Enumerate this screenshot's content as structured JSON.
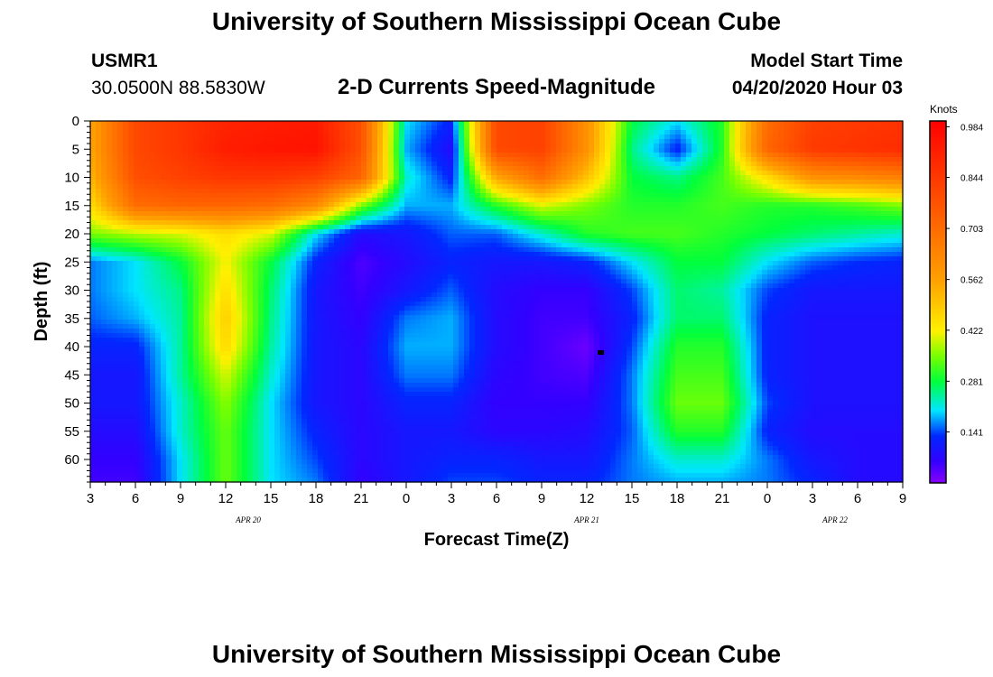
{
  "header": {
    "title": "University of Southern Mississippi Ocean Cube",
    "station": "USMR1",
    "coordinates": "30.0500N 88.5830W",
    "subtitle": "2-D Currents Speed-Magnitude",
    "model_label": "Model Start Time",
    "model_time": "04/20/2020 Hour 03"
  },
  "footer": {
    "title": "University of Southern Mississippi Ocean Cube"
  },
  "chart_data": {
    "type": "heatmap",
    "title": "2-D Currents Speed-Magnitude",
    "xlabel": "Forecast Time(Z)",
    "ylabel": "Depth (ft)",
    "x_unit": "hours since 04/20/2020 03Z",
    "xlim": [
      0,
      54
    ],
    "ylim": [
      0,
      64
    ],
    "y_inverted": true,
    "x_ticks": [
      {
        "hour": 0,
        "label": "3"
      },
      {
        "hour": 3,
        "label": "6"
      },
      {
        "hour": 6,
        "label": "9"
      },
      {
        "hour": 9,
        "label": "12"
      },
      {
        "hour": 12,
        "label": "15"
      },
      {
        "hour": 15,
        "label": "18"
      },
      {
        "hour": 18,
        "label": "21"
      },
      {
        "hour": 21,
        "label": "0"
      },
      {
        "hour": 24,
        "label": "3"
      },
      {
        "hour": 27,
        "label": "6"
      },
      {
        "hour": 30,
        "label": "9"
      },
      {
        "hour": 33,
        "label": "12"
      },
      {
        "hour": 36,
        "label": "15"
      },
      {
        "hour": 39,
        "label": "18"
      },
      {
        "hour": 42,
        "label": "21"
      },
      {
        "hour": 45,
        "label": "0"
      },
      {
        "hour": 48,
        "label": "3"
      },
      {
        "hour": 51,
        "label": "6"
      },
      {
        "hour": 54,
        "label": "9"
      }
    ],
    "date_labels": [
      {
        "hour": 10.5,
        "label": "APR 20"
      },
      {
        "hour": 33,
        "label": "APR 21"
      },
      {
        "hour": 49.5,
        "label": "APR 22"
      }
    ],
    "y_ticks": [
      0,
      5,
      10,
      15,
      20,
      25,
      30,
      35,
      40,
      45,
      50,
      55,
      60
    ],
    "colorbar": {
      "units": "Knots",
      "min": 0,
      "max": 1.0,
      "tick_values": [
        0.141,
        0.281,
        0.422,
        0.562,
        0.703,
        0.844,
        0.984
      ],
      "tick_labels": [
        "0.141",
        "0.281",
        "0.422",
        "0.562",
        "0.703",
        "0.844",
        "0.984"
      ]
    },
    "grid_x_hours": [
      0,
      3,
      6,
      9,
      12,
      15,
      18,
      21,
      24,
      27,
      30,
      33,
      36,
      39,
      42,
      45,
      48,
      51,
      54
    ],
    "grid_y_depths": [
      0,
      5,
      10,
      15,
      20,
      25,
      30,
      35,
      40,
      45,
      50,
      55,
      60,
      64
    ],
    "values": [
      [
        0.55,
        0.8,
        0.85,
        0.9,
        0.92,
        0.93,
        0.78,
        0.2,
        0.12,
        0.8,
        0.82,
        0.6,
        0.28,
        0.2,
        0.3,
        0.7,
        0.82,
        0.84,
        0.86
      ],
      [
        0.55,
        0.8,
        0.85,
        0.92,
        0.94,
        0.95,
        0.78,
        0.18,
        0.08,
        0.8,
        0.82,
        0.6,
        0.25,
        0.12,
        0.3,
        0.72,
        0.84,
        0.86,
        0.88
      ],
      [
        0.52,
        0.78,
        0.82,
        0.85,
        0.85,
        0.82,
        0.72,
        0.22,
        0.12,
        0.55,
        0.7,
        0.5,
        0.28,
        0.25,
        0.32,
        0.45,
        0.6,
        0.62,
        0.65
      ],
      [
        0.45,
        0.7,
        0.72,
        0.72,
        0.7,
        0.62,
        0.35,
        0.18,
        0.18,
        0.3,
        0.4,
        0.35,
        0.3,
        0.3,
        0.32,
        0.3,
        0.3,
        0.32,
        0.35
      ],
      [
        0.35,
        0.38,
        0.4,
        0.45,
        0.4,
        0.2,
        0.08,
        0.1,
        0.15,
        0.15,
        0.22,
        0.3,
        0.32,
        0.32,
        0.3,
        0.28,
        0.26,
        0.24,
        0.22
      ],
      [
        0.16,
        0.2,
        0.28,
        0.42,
        0.28,
        0.12,
        0.04,
        0.08,
        0.12,
        0.1,
        0.1,
        0.12,
        0.2,
        0.28,
        0.28,
        0.2,
        0.15,
        0.13,
        0.12
      ],
      [
        0.16,
        0.2,
        0.25,
        0.45,
        0.26,
        0.1,
        0.05,
        0.1,
        0.15,
        0.08,
        0.06,
        0.06,
        0.14,
        0.26,
        0.24,
        0.14,
        0.1,
        0.1,
        0.1
      ],
      [
        0.15,
        0.18,
        0.24,
        0.48,
        0.25,
        0.1,
        0.06,
        0.16,
        0.18,
        0.08,
        0.05,
        0.05,
        0.12,
        0.26,
        0.26,
        0.12,
        0.09,
        0.09,
        0.09
      ],
      [
        0.12,
        0.12,
        0.24,
        0.46,
        0.24,
        0.1,
        0.07,
        0.18,
        0.18,
        0.08,
        0.05,
        0.02,
        0.14,
        0.3,
        0.3,
        0.12,
        0.09,
        0.09,
        0.09
      ],
      [
        0.1,
        0.1,
        0.24,
        0.4,
        0.22,
        0.1,
        0.07,
        0.16,
        0.16,
        0.07,
        0.05,
        0.04,
        0.16,
        0.32,
        0.32,
        0.12,
        0.09,
        0.09,
        0.09
      ],
      [
        0.1,
        0.1,
        0.22,
        0.36,
        0.2,
        0.1,
        0.07,
        0.12,
        0.12,
        0.06,
        0.06,
        0.06,
        0.16,
        0.34,
        0.34,
        0.14,
        0.09,
        0.09,
        0.09
      ],
      [
        0.08,
        0.08,
        0.22,
        0.34,
        0.2,
        0.12,
        0.07,
        0.1,
        0.1,
        0.07,
        0.07,
        0.08,
        0.15,
        0.3,
        0.3,
        0.12,
        0.08,
        0.08,
        0.08
      ],
      [
        0.06,
        0.06,
        0.2,
        0.34,
        0.2,
        0.14,
        0.07,
        0.1,
        0.12,
        0.12,
        0.1,
        0.1,
        0.16,
        0.22,
        0.22,
        0.16,
        0.1,
        0.08,
        0.08
      ],
      [
        0.05,
        0.05,
        0.2,
        0.34,
        0.2,
        0.16,
        0.06,
        0.1,
        0.14,
        0.14,
        0.12,
        0.12,
        0.16,
        0.18,
        0.18,
        0.16,
        0.12,
        0.08,
        0.08
      ]
    ]
  }
}
